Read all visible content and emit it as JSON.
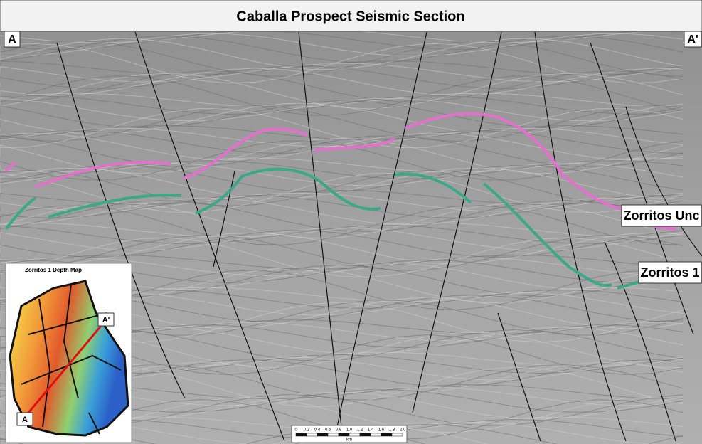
{
  "title": "Caballa Prospect Seismic Section",
  "section_ends": {
    "left": "A",
    "right": "A'"
  },
  "horizons": [
    {
      "label": "Zorritos Unc"
    },
    {
      "label": "Zorritos 1"
    }
  ],
  "inset": {
    "title": "Zorritos 1 Depth Map",
    "line_ends": {
      "start": "A",
      "end": "A'"
    }
  },
  "scale_bar": {
    "ticks": [
      "0",
      "0.2",
      "0.4",
      "0.6",
      "0.8",
      "1.0",
      "1.2",
      "1.4",
      "1.6",
      "1.8",
      "2.0"
    ],
    "unit": "km"
  }
}
